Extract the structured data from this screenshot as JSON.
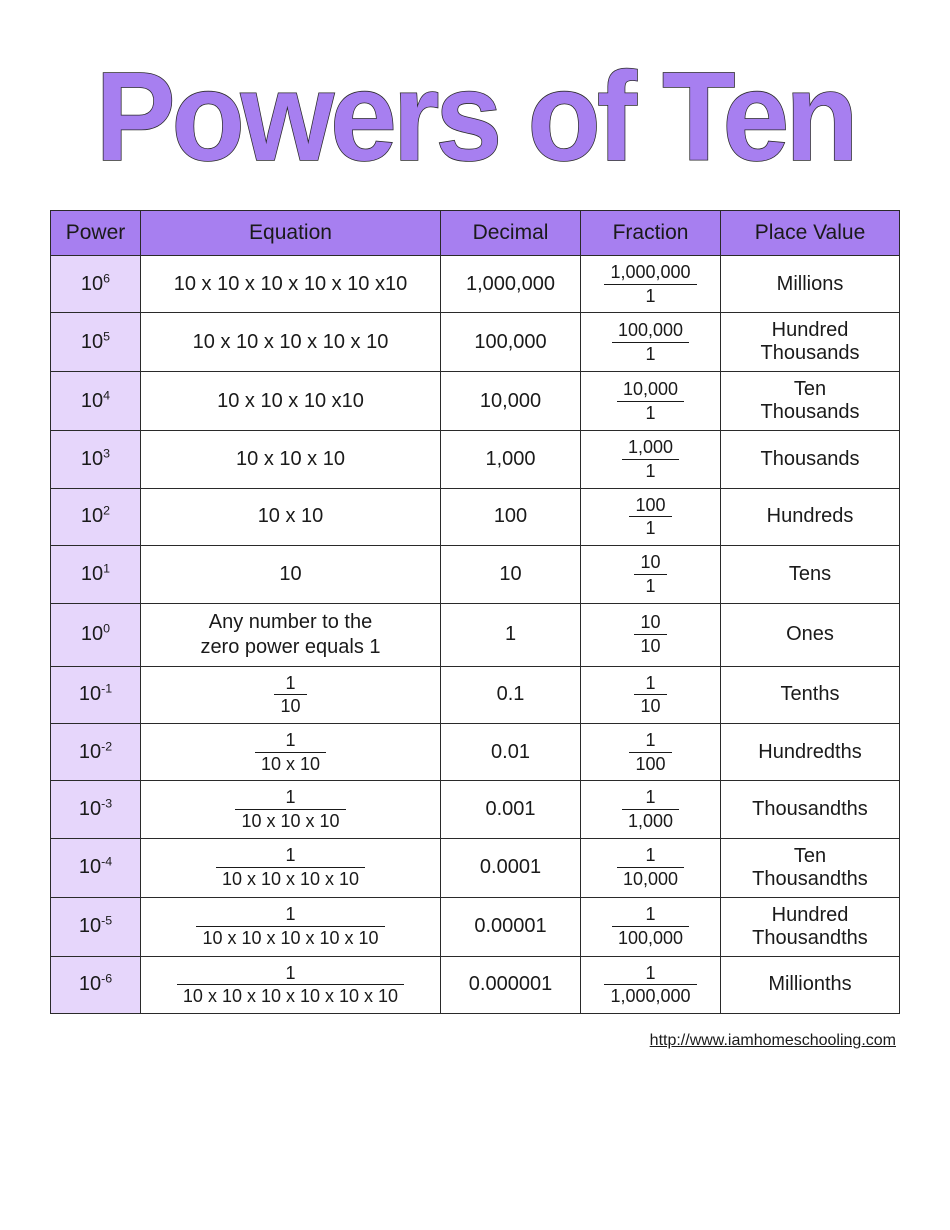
{
  "title": "Powers of Ten",
  "title_fill": "#a77ff0",
  "title_stroke": "#2a2a2a",
  "header_bg": "#a77ff0",
  "power_col_bg": "#e6d6fb",
  "border_color": "#2a2a2a",
  "columns": [
    "Power",
    "Equation",
    "Decimal",
    "Fraction",
    "Place Value"
  ],
  "rows": [
    {
      "base": "10",
      "exp": "6",
      "eq_type": "plain",
      "eq_text": "10 x 10 x 10 x 10 x 10 x10",
      "decimal": "1,000,000",
      "frac_num": "1,000,000",
      "frac_den": "1",
      "place": "Millions"
    },
    {
      "base": "10",
      "exp": "5",
      "eq_type": "plain",
      "eq_text": "10 x 10 x 10 x 10 x 10",
      "decimal": "100,000",
      "frac_num": "100,000",
      "frac_den": "1",
      "place": "Hundred Thousands"
    },
    {
      "base": "10",
      "exp": "4",
      "eq_type": "plain",
      "eq_text": "10 x 10 x 10 x10",
      "decimal": "10,000",
      "frac_num": "10,000",
      "frac_den": "1",
      "place": "Ten Thousands"
    },
    {
      "base": "10",
      "exp": "3",
      "eq_type": "plain",
      "eq_text": "10 x 10 x 10",
      "decimal": "1,000",
      "frac_num": "1,000",
      "frac_den": "1",
      "place": "Thousands"
    },
    {
      "base": "10",
      "exp": "2",
      "eq_type": "plain",
      "eq_text": "10 x 10",
      "decimal": "100",
      "frac_num": "100",
      "frac_den": "1",
      "place": "Hundreds"
    },
    {
      "base": "10",
      "exp": "1",
      "eq_type": "plain",
      "eq_text": "10",
      "decimal": "10",
      "frac_num": "10",
      "frac_den": "1",
      "place": "Tens"
    },
    {
      "base": "10",
      "exp": "0",
      "eq_type": "text",
      "eq_text": "Any number to the zero power equals 1",
      "decimal": "1",
      "frac_num": "10",
      "frac_den": "10",
      "place": "Ones"
    },
    {
      "base": "10",
      "exp": "-1",
      "eq_type": "fraction",
      "eq_num": "1",
      "eq_den": "10",
      "decimal": "0.1",
      "frac_num": "1",
      "frac_den": "10",
      "place": "Tenths"
    },
    {
      "base": "10",
      "exp": "-2",
      "eq_type": "fraction",
      "eq_num": "1",
      "eq_den": "10 x 10",
      "decimal": "0.01",
      "frac_num": "1",
      "frac_den": "100",
      "place": "Hundredths"
    },
    {
      "base": "10",
      "exp": "-3",
      "eq_type": "fraction",
      "eq_num": "1",
      "eq_den": "10 x 10 x 10",
      "decimal": "0.001",
      "frac_num": "1",
      "frac_den": "1,000",
      "place": "Thousandths"
    },
    {
      "base": "10",
      "exp": "-4",
      "eq_type": "fraction",
      "eq_num": "1",
      "eq_den": "10 x 10 x 10 x 10",
      "decimal": "0.0001",
      "frac_num": "1",
      "frac_den": "10,000",
      "place": "Ten Thousandths"
    },
    {
      "base": "10",
      "exp": "-5",
      "eq_type": "fraction",
      "eq_num": "1",
      "eq_den": "10 x 10 x 10 x 10 x 10",
      "decimal": "0.00001",
      "frac_num": "1",
      "frac_den": "100,000",
      "place": "Hundred Thousandths"
    },
    {
      "base": "10",
      "exp": "-6",
      "eq_type": "fraction",
      "eq_num": "1",
      "eq_den": "10 x 10 x 10 x 10 x 10 x 10",
      "decimal": "0.000001",
      "frac_num": "1",
      "frac_den": "1,000,000",
      "place": "Millionths"
    }
  ],
  "footer_url": "http://www.iamhomeschooling.com"
}
